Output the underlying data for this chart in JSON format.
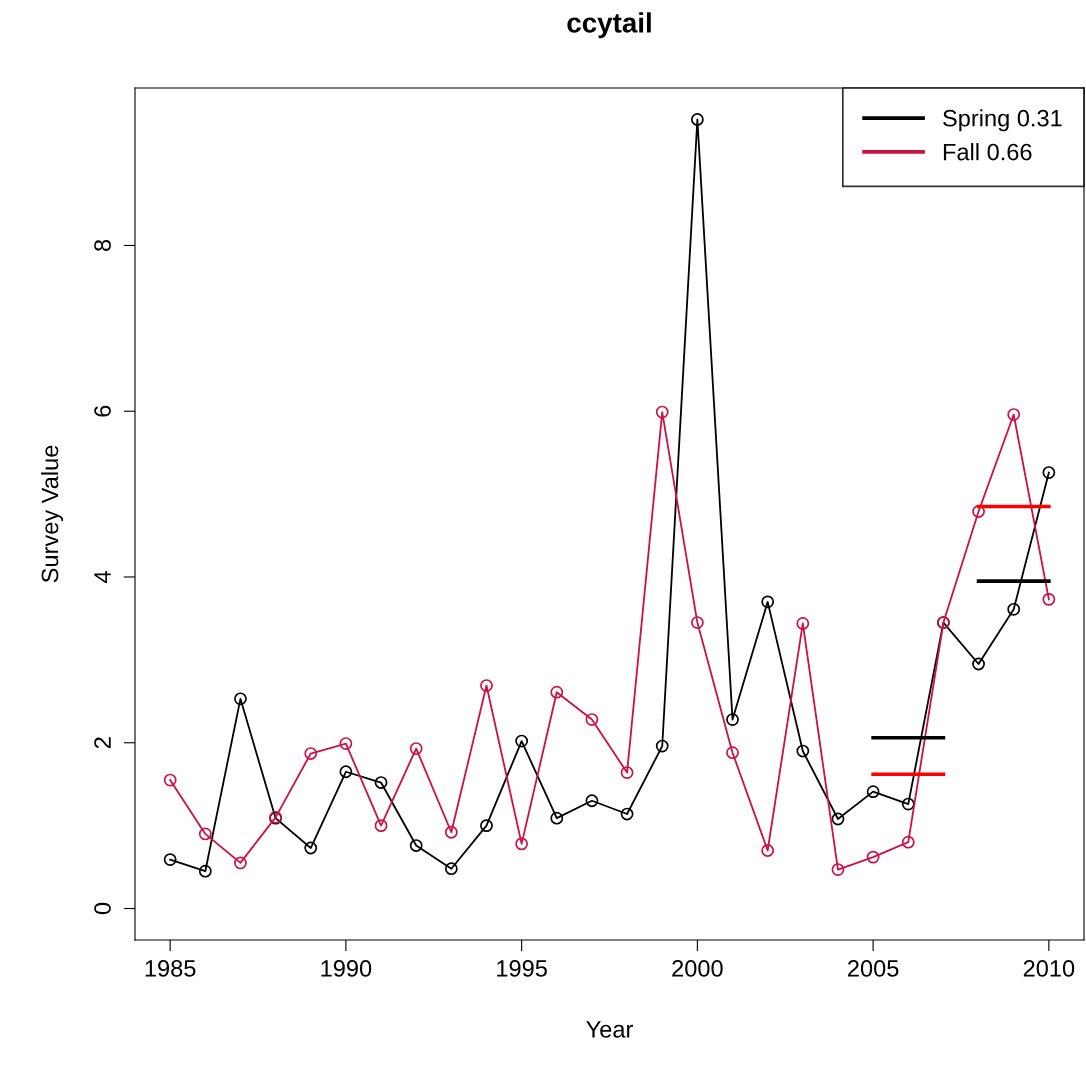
{
  "chart_data": {
    "type": "line",
    "title": "ccytail",
    "xlabel": "Year",
    "ylabel": "Survey Value",
    "xlim": [
      1984,
      2011
    ],
    "xticks": [
      1985,
      1990,
      1995,
      2000,
      2005,
      2010
    ],
    "ylim": [
      -0.38,
      9.9
    ],
    "yticks": [
      0,
      2,
      4,
      6,
      8
    ],
    "grid": false,
    "legend": "top right",
    "marker": "circle",
    "line_style": "solid",
    "series": [
      {
        "name": "Spring 0.31",
        "color": "#000000",
        "x": [
          1985,
          1986,
          1987,
          1988,
          1989,
          1990,
          1991,
          1992,
          1993,
          1994,
          1995,
          1996,
          1997,
          1998,
          1999,
          2000,
          2001,
          2002,
          2003,
          2004,
          2005,
          2006,
          2007,
          2008,
          2009,
          2010
        ],
        "values": [
          0.59,
          0.45,
          2.53,
          1.09,
          0.73,
          1.65,
          1.52,
          0.76,
          0.48,
          1.0,
          2.02,
          1.09,
          1.3,
          1.14,
          1.96,
          9.52,
          2.28,
          3.7,
          1.9,
          1.08,
          1.41,
          1.26,
          3.45,
          2.95,
          3.61,
          5.26
        ]
      },
      {
        "name": "Fall 0.66",
        "color": "#cc1144",
        "x": [
          1985,
          1986,
          1987,
          1988,
          1989,
          1990,
          1991,
          1992,
          1993,
          1994,
          1995,
          1996,
          1997,
          1998,
          1999,
          2000,
          2001,
          2002,
          2003,
          2004,
          2005,
          2006,
          2007,
          2008,
          2009,
          2010
        ],
        "values": [
          1.55,
          0.9,
          0.55,
          1.1,
          1.87,
          1.99,
          1.0,
          1.93,
          0.92,
          2.69,
          0.78,
          2.61,
          2.28,
          1.64,
          5.99,
          3.45,
          1.88,
          0.7,
          3.44,
          0.47,
          0.62,
          0.8,
          3.45,
          4.79,
          5.96,
          3.73
        ]
      },
      {
        "color": "#000000",
        "marker": "none",
        "x": [
          2005,
          2007
        ],
        "values": [
          2.06,
          2.06
        ]
      },
      {
        "color": "#ff0000",
        "marker": "none",
        "x": [
          2005,
          2007
        ],
        "values": [
          1.62,
          1.62
        ]
      },
      {
        "color": "#000000",
        "marker": "none",
        "x": [
          2008,
          2010
        ],
        "values": [
          3.95,
          3.95
        ]
      },
      {
        "color": "#ff0000",
        "marker": "none",
        "x": [
          2008,
          2010
        ],
        "values": [
          4.85,
          4.85
        ]
      }
    ]
  }
}
